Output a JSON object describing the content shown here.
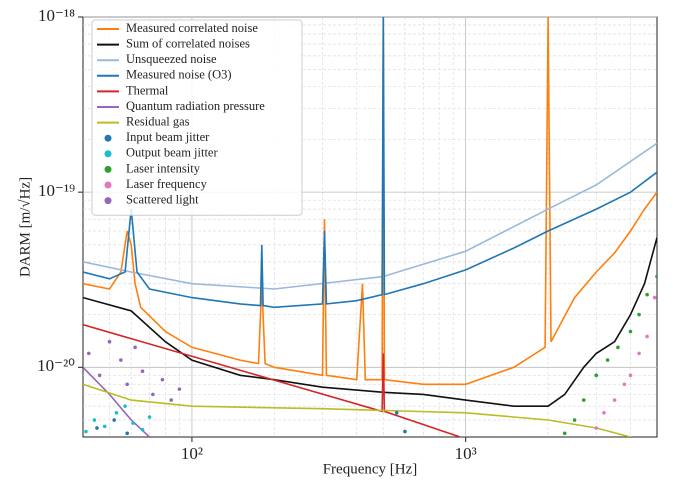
{
  "chart_data": {
    "type": "line",
    "x_label": "Frequency [Hz]",
    "y_label": "DARM [m/√Hz]",
    "xlog": true,
    "ylog": true,
    "grid": true,
    "minor_grid": true,
    "legend": "upper left",
    "xlim": [
      40,
      5000
    ],
    "ylim": [
      4e-21,
      1e-18
    ],
    "xticks": [
      {
        "value": 100,
        "label": "10²"
      },
      {
        "value": 1000,
        "label": "10³"
      }
    ],
    "yticks": [
      {
        "value": 1e-20,
        "label": "10⁻²⁰"
      },
      {
        "value": 1e-19,
        "label": "10⁻¹⁹"
      },
      {
        "value": 1e-18,
        "label": "10⁻¹⁸"
      }
    ],
    "series": [
      {
        "name": "Measured correlated noise",
        "color": "#ff7f0e",
        "style": "line",
        "x": [
          40,
          50,
          55,
          58,
          60,
          62,
          65,
          80,
          100,
          150,
          175,
          180,
          185,
          200,
          300,
          305,
          310,
          400,
          420,
          430,
          495,
          500,
          505,
          700,
          1000,
          1500,
          1950,
          2000,
          2050,
          2500,
          3000,
          3500,
          4000,
          4500,
          5000
        ],
        "values": [
          3e-20,
          2.8e-20,
          3.5e-20,
          6e-20,
          5e-20,
          3e-20,
          2.2e-20,
          1.6e-20,
          1.3e-20,
          1.1e-20,
          1.05e-20,
          3e-20,
          1.05e-20,
          1e-20,
          9e-21,
          7e-20,
          9e-21,
          8.5e-21,
          3e-20,
          8.5e-21,
          8.5e-21,
          1e-18,
          8.5e-21,
          8e-21,
          8e-21,
          1e-20,
          1.3e-20,
          1e-18,
          1.4e-20,
          2.5e-20,
          3.5e-20,
          4.5e-20,
          6e-20,
          8e-20,
          1e-19
        ]
      },
      {
        "name": "Sum of correlated noises",
        "color": "#111111",
        "style": "line",
        "x": [
          40,
          60,
          80,
          100,
          150,
          200,
          300,
          500,
          700,
          1000,
          1500,
          2000,
          2300,
          2700,
          3000,
          3500,
          4000,
          4500,
          5000
        ],
        "values": [
          2.5e-20,
          2.1e-20,
          1.4e-20,
          1.1e-20,
          9e-21,
          8.5e-21,
          7.7e-21,
          7.2e-21,
          7e-21,
          6.5e-21,
          6e-21,
          6e-21,
          7e-21,
          1e-20,
          1.2e-20,
          1.4e-20,
          2e-20,
          3e-20,
          5.5e-20
        ]
      },
      {
        "name": "Unsqueezed noise",
        "color": "#9ab9dc",
        "style": "line",
        "x": [
          40,
          60,
          100,
          200,
          500,
          1000,
          2000,
          3000,
          5000
        ],
        "values": [
          4e-20,
          3.5e-20,
          3e-20,
          2.8e-20,
          3.3e-20,
          4.6e-20,
          8e-20,
          1.1e-19,
          1.9e-19
        ]
      },
      {
        "name": "Measured noise (O3)",
        "color": "#1f77b4",
        "style": "line",
        "x": [
          40,
          50,
          57,
          60,
          63,
          70,
          100,
          150,
          178,
          180,
          182,
          200,
          300,
          305,
          310,
          400,
          495,
          500,
          505,
          700,
          1000,
          1500,
          2000,
          3000,
          4000,
          5000
        ],
        "values": [
          3.5e-20,
          3.2e-20,
          3.5e-20,
          8e-20,
          3.5e-20,
          2.8e-20,
          2.5e-20,
          2.3e-20,
          2.25e-20,
          5e-20,
          2.25e-20,
          2.2e-20,
          2.3e-20,
          6e-20,
          2.3e-20,
          2.4e-20,
          2.6e-20,
          1e-18,
          2.6e-20,
          3e-20,
          3.6e-20,
          4.8e-20,
          6e-20,
          8e-20,
          1e-19,
          1.3e-19
        ]
      },
      {
        "name": "Thermal",
        "color": "#d62728",
        "style": "line",
        "x": [
          40,
          495,
          500,
          505,
          1000
        ],
        "values": [
          1.75e-20,
          5.6e-21,
          1.2e-20,
          5.6e-21,
          3.9e-21
        ]
      },
      {
        "name": "Quantum radiation pressure",
        "color": "#9467bd",
        "style": "line",
        "x": [
          40,
          50,
          60,
          70
        ],
        "values": [
          1e-20,
          7e-21,
          5e-21,
          4e-21
        ]
      },
      {
        "name": "Residual gas",
        "color": "#bcbd22",
        "style": "line",
        "x": [
          40,
          60,
          100,
          300,
          1000,
          2000,
          3000,
          4000
        ],
        "values": [
          8e-21,
          6.5e-21,
          6e-21,
          5.8e-21,
          5.5e-21,
          5e-21,
          4.5e-21,
          4e-21
        ]
      },
      {
        "name": "Input beam jitter",
        "color": "#1f77b4",
        "style": "dots",
        "x": [
          45,
          52,
          58,
          560,
          600
        ],
        "values": [
          4.5e-21,
          5e-21,
          4.2e-21,
          5.5e-21,
          4.3e-21
        ]
      },
      {
        "name": "Output beam jitter",
        "color": "#17becf",
        "style": "dots",
        "x": [
          41,
          44,
          48,
          53,
          57,
          61,
          66,
          70
        ],
        "values": [
          4.3e-21,
          5e-21,
          4.6e-21,
          5.5e-21,
          6e-21,
          4.8e-21,
          4.4e-21,
          5.2e-21
        ]
      },
      {
        "name": "Laser intensity",
        "color": "#2ca02c",
        "style": "dots",
        "x": [
          2300,
          2500,
          2700,
          3000,
          3300,
          3600,
          4000,
          4300,
          4600,
          5000
        ],
        "values": [
          4.2e-21,
          5e-21,
          6.5e-21,
          9e-21,
          1.1e-20,
          1.3e-20,
          1.6e-20,
          2e-20,
          2.6e-20,
          3.3e-20
        ]
      },
      {
        "name": "Laser frequency",
        "color": "#e377c2",
        "style": "dots",
        "x": [
          3000,
          3200,
          3500,
          3800,
          4000,
          4300,
          4600,
          4900
        ],
        "values": [
          4.5e-21,
          5.5e-21,
          6.5e-21,
          8e-21,
          9e-21,
          1.2e-20,
          1.5e-20,
          2.5e-20
        ]
      },
      {
        "name": "Scattered light",
        "color": "#9467bd",
        "style": "dots",
        "x": [
          42,
          46,
          50,
          55,
          58,
          62,
          66,
          72,
          78,
          84,
          90
        ],
        "values": [
          1.2e-20,
          9e-21,
          1.4e-20,
          1.1e-20,
          8e-21,
          1.3e-20,
          9.5e-21,
          7e-21,
          8.5e-21,
          6.5e-21,
          7.5e-21
        ]
      }
    ]
  }
}
